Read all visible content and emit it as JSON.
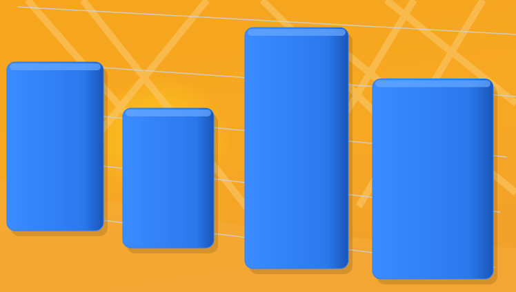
{
  "chart_data": {
    "type": "bar",
    "categories": [
      null,
      null,
      null,
      null
    ],
    "values": [
      7,
      5.8,
      10,
      8.3
    ],
    "color": "#2f7ff0",
    "ylim": [
      0,
      10
    ],
    "grid": true
  }
}
